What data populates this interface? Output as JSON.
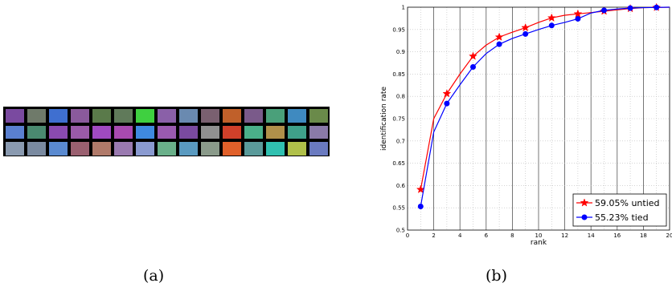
{
  "panel_a": {
    "caption": "(a)",
    "patch_colors": [
      [
        "#7a4aa0",
        "#6f7a6a",
        "#3f6fd0",
        "#8a5a9c",
        "#5a7a4a",
        "#607a5a",
        "#3fd040",
        "#8a60a8",
        "#6a8ab0",
        "#7a6070",
        "#c0602a",
        "#7a5a8a",
        "#4aa07a",
        "#3f8ac0",
        "#6a8a4a"
      ],
      [
        "#5a80d0",
        "#4a8a70",
        "#8a4ab0",
        "#9a5aa8",
        "#a04ac0",
        "#a84ab0",
        "#3f8ae0",
        "#9a5ab0",
        "#7a4aa0",
        "#909090",
        "#d0402a",
        "#4ab08a",
        "#b0904a",
        "#3fa08a",
        "#8a7aa8"
      ],
      [
        "#8a9ab0",
        "#7a8aa0",
        "#5a8ad0",
        "#9a6070",
        "#b07a6a",
        "#9a7ab0",
        "#8a9ad0",
        "#6ab08a",
        "#5a9ac0",
        "#8a9a8a",
        "#e0602a",
        "#5a9a9a",
        "#30c0b0",
        "#b0c04a",
        "#6a7ac0"
      ]
    ]
  },
  "panel_b": {
    "caption": "(b)"
  },
  "chart_data": {
    "type": "line",
    "xlabel": "rank",
    "ylabel": "identification rate",
    "xlim": [
      0,
      20
    ],
    "ylim": [
      0.5,
      1
    ],
    "x_ticks": [
      0,
      2,
      4,
      6,
      8,
      10,
      12,
      14,
      16,
      18,
      20
    ],
    "y_ticks": [
      0.5,
      0.55,
      0.6,
      0.65,
      0.7,
      0.75,
      0.8,
      0.85,
      0.9,
      0.95,
      1
    ],
    "y_tick_labels": [
      "0.5",
      "0.55",
      "0.6",
      "0.65",
      "0.7",
      "0.75",
      "0.8",
      "0.85",
      "0.9",
      "0.95",
      "1"
    ],
    "grid": true,
    "legend_position": "bottom-right",
    "x": [
      1,
      2,
      3,
      4,
      5,
      6,
      7,
      8,
      9,
      10,
      11,
      12,
      13,
      14,
      15,
      16,
      17,
      18,
      19,
      20
    ],
    "series": [
      {
        "name": "59.05% untied",
        "color": "#ff0000",
        "marker": "star",
        "marker_every": 2,
        "values": [
          0.591,
          0.75,
          0.806,
          0.85,
          0.89,
          0.915,
          0.933,
          0.944,
          0.954,
          0.966,
          0.976,
          0.982,
          0.985,
          0.988,
          0.991,
          0.994,
          0.997,
          0.999,
          0.9995,
          1.0
        ]
      },
      {
        "name": "55.23% tied",
        "color": "#0000ff",
        "marker": "circle",
        "marker_every": 2,
        "values": [
          0.553,
          0.72,
          0.784,
          0.826,
          0.866,
          0.896,
          0.917,
          0.93,
          0.94,
          0.95,
          0.959,
          0.966,
          0.974,
          0.987,
          0.993,
          0.996,
          0.998,
          0.999,
          0.9995,
          1.0
        ]
      }
    ]
  }
}
